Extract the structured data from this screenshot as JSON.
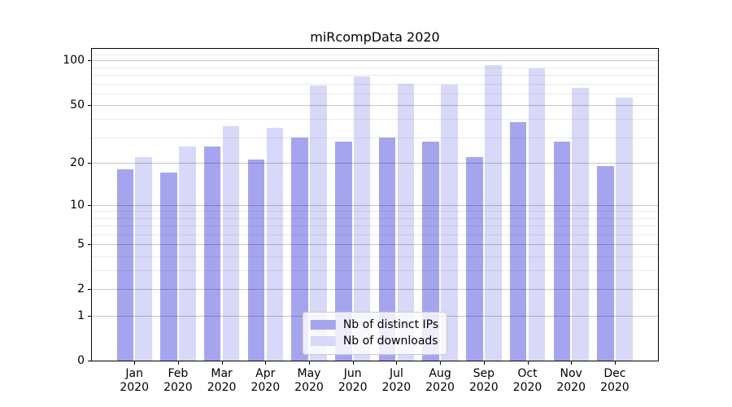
{
  "title": "miRcompData 2020",
  "chart_data": {
    "type": "bar",
    "title": "miRcompData 2020",
    "categories": [
      "Jan",
      "Feb",
      "Mar",
      "Apr",
      "May",
      "Jun",
      "Jul",
      "Aug",
      "Sep",
      "Oct",
      "Nov",
      "Dec"
    ],
    "year": "2020",
    "series": [
      {
        "name": "Nb of distinct IPs",
        "color": "#a5a5ef",
        "values": [
          18,
          17,
          26,
          21,
          30,
          28,
          30,
          28,
          22,
          38,
          28,
          19
        ]
      },
      {
        "name": "Nb of downloads",
        "color": "#d8d8f8",
        "values": [
          22,
          26,
          36,
          35,
          68,
          78,
          70,
          69,
          93,
          89,
          65,
          56
        ]
      }
    ],
    "xlabel": "",
    "ylabel": "",
    "yscale": "log1p",
    "ylim": [
      0,
      120
    ],
    "y_major_ticks": [
      0,
      1,
      2,
      5,
      10,
      20,
      50,
      100
    ],
    "y_minor_gridlines": [
      3,
      4,
      6,
      7,
      8,
      9,
      30,
      40,
      60,
      70,
      80,
      90,
      110
    ],
    "grid": true,
    "legend_position": "lower center"
  },
  "colors": {
    "background": "#ffffff",
    "spine": "#000000",
    "text": "#000000",
    "legend_border": "#cccccc"
  }
}
